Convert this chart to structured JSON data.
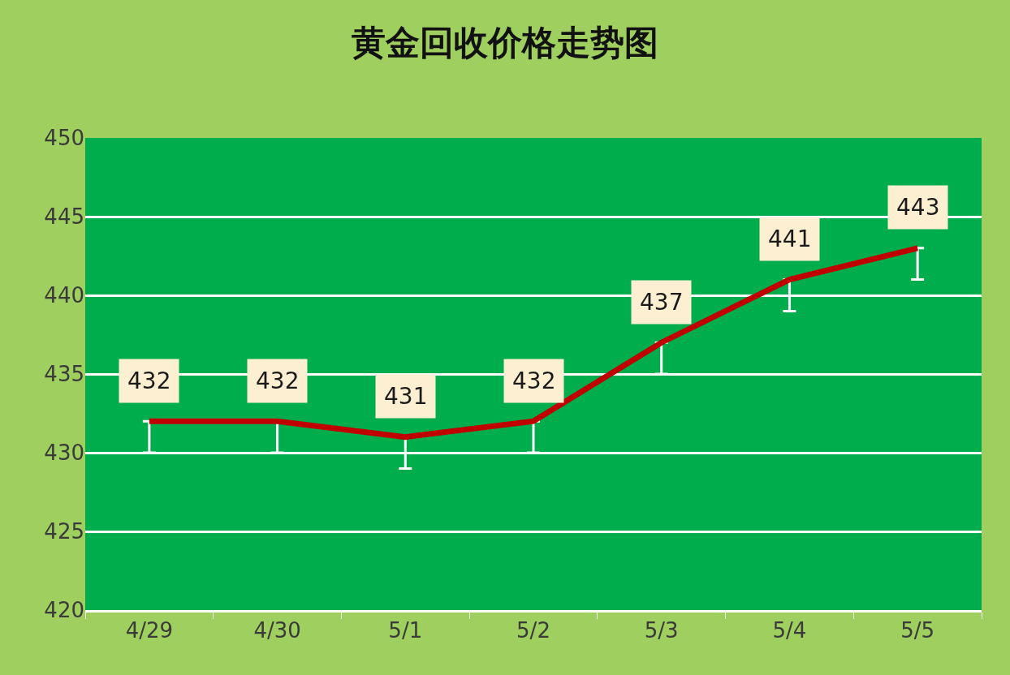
{
  "chart_data": {
    "type": "line",
    "title": "黄金回收价格走势图",
    "categories": [
      "4/29",
      "4/30",
      "5/1",
      "5/2",
      "5/3",
      "5/4",
      "5/5"
    ],
    "series": [
      {
        "color": "#c00000",
        "values": [
          432,
          432,
          431,
          432,
          437,
          441,
          443
        ],
        "errors": [
          [
            430,
            432
          ],
          [
            430,
            432
          ],
          [
            429,
            431
          ],
          [
            430,
            432
          ],
          [
            435,
            437
          ],
          [
            439,
            441
          ],
          [
            441,
            443
          ]
        ]
      }
    ],
    "ylim": [
      420,
      450
    ],
    "yticks": [
      420,
      425,
      430,
      435,
      440,
      445,
      450
    ],
    "grid": "y",
    "marker": "none",
    "line_style": "solid",
    "data_labels": true
  }
}
